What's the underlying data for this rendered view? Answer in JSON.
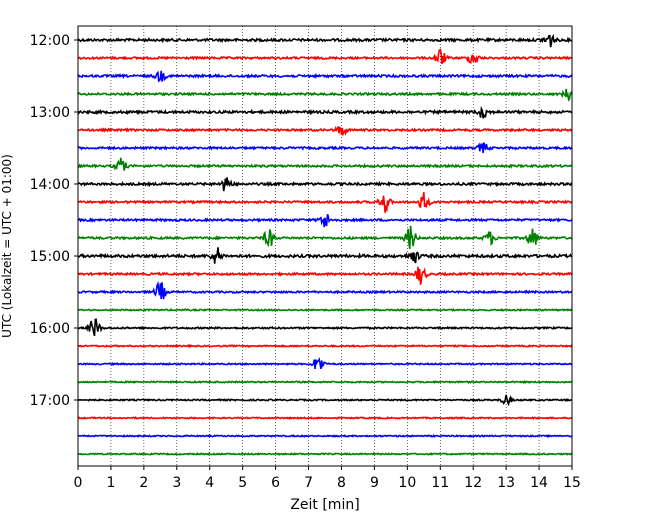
{
  "chart_data": {
    "type": "line",
    "title": "",
    "xlabel": "Zeit  [min]",
    "ylabel": "UTC (Lokalzeit = UTC + 01:00)",
    "xlim": [
      0,
      15
    ],
    "x_ticks": [
      0,
      1,
      2,
      3,
      4,
      5,
      6,
      7,
      8,
      9,
      10,
      11,
      12,
      13,
      14,
      15
    ],
    "y_ticks": [
      "12:00",
      "13:00",
      "14:00",
      "15:00",
      "16:00",
      "17:00"
    ],
    "grid_x": true,
    "trace_colors": [
      "#000000",
      "#ff0000",
      "#0000ff",
      "#008000"
    ],
    "series": [
      {
        "start": "12:00",
        "color": "#000000",
        "amplitude": 0.55,
        "events": [
          [
            14.3,
            1.2
          ]
        ]
      },
      {
        "start": "12:15",
        "color": "#ff0000",
        "amplitude": 0.45,
        "events": [
          [
            11.0,
            1.4
          ],
          [
            12.0,
            1.0
          ]
        ]
      },
      {
        "start": "12:30",
        "color": "#0000ff",
        "amplitude": 0.5,
        "events": [
          [
            2.5,
            0.8
          ]
        ]
      },
      {
        "start": "12:45",
        "color": "#008000",
        "amplitude": 0.45,
        "events": [
          [
            14.9,
            1.0
          ]
        ]
      },
      {
        "start": "13:00",
        "color": "#000000",
        "amplitude": 0.55,
        "events": [
          [
            12.3,
            0.9
          ]
        ]
      },
      {
        "start": "13:15",
        "color": "#ff0000",
        "amplitude": 0.45,
        "events": [
          [
            8.0,
            0.8
          ]
        ]
      },
      {
        "start": "13:30",
        "color": "#0000ff",
        "amplitude": 0.45,
        "events": [
          [
            12.3,
            0.8
          ]
        ]
      },
      {
        "start": "13:45",
        "color": "#008000",
        "amplitude": 0.45,
        "events": [
          [
            1.3,
            1.2
          ]
        ]
      },
      {
        "start": "14:00",
        "color": "#000000",
        "amplitude": 0.5,
        "events": [
          [
            4.5,
            1.2
          ]
        ]
      },
      {
        "start": "14:15",
        "color": "#ff0000",
        "amplitude": 0.45,
        "events": [
          [
            9.3,
            1.6
          ],
          [
            10.5,
            1.4
          ]
        ]
      },
      {
        "start": "14:30",
        "color": "#0000ff",
        "amplitude": 0.45,
        "events": [
          [
            7.5,
            1.2
          ]
        ]
      },
      {
        "start": "14:45",
        "color": "#008000",
        "amplitude": 0.45,
        "events": [
          [
            5.8,
            1.4
          ],
          [
            10.1,
            1.8
          ],
          [
            12.5,
            1.0
          ],
          [
            13.8,
            1.5
          ]
        ]
      },
      {
        "start": "15:00",
        "color": "#000000",
        "amplitude": 0.6,
        "events": [
          [
            4.2,
            1.3
          ],
          [
            10.2,
            1.0
          ]
        ]
      },
      {
        "start": "15:15",
        "color": "#ff0000",
        "amplitude": 0.45,
        "events": [
          [
            10.4,
            1.5
          ]
        ]
      },
      {
        "start": "15:30",
        "color": "#0000ff",
        "amplitude": 0.4,
        "events": [
          [
            2.5,
            1.6
          ]
        ]
      },
      {
        "start": "15:45",
        "color": "#008000",
        "amplitude": 0.3,
        "events": []
      },
      {
        "start": "16:00",
        "color": "#000000",
        "amplitude": 0.35,
        "events": [
          [
            0.5,
            1.6
          ]
        ]
      },
      {
        "start": "16:15",
        "color": "#ff0000",
        "amplitude": 0.3,
        "events": []
      },
      {
        "start": "16:30",
        "color": "#0000ff",
        "amplitude": 0.3,
        "events": [
          [
            7.3,
            1.4
          ]
        ]
      },
      {
        "start": "16:45",
        "color": "#008000",
        "amplitude": 0.3,
        "events": []
      },
      {
        "start": "17:00",
        "color": "#000000",
        "amplitude": 0.3,
        "events": [
          [
            13.0,
            0.7
          ]
        ]
      },
      {
        "start": "17:15",
        "color": "#ff0000",
        "amplitude": 0.28,
        "events": []
      },
      {
        "start": "17:30",
        "color": "#0000ff",
        "amplitude": 0.28,
        "events": []
      },
      {
        "start": "17:45",
        "color": "#008000",
        "amplitude": 0.28,
        "events": []
      }
    ]
  }
}
